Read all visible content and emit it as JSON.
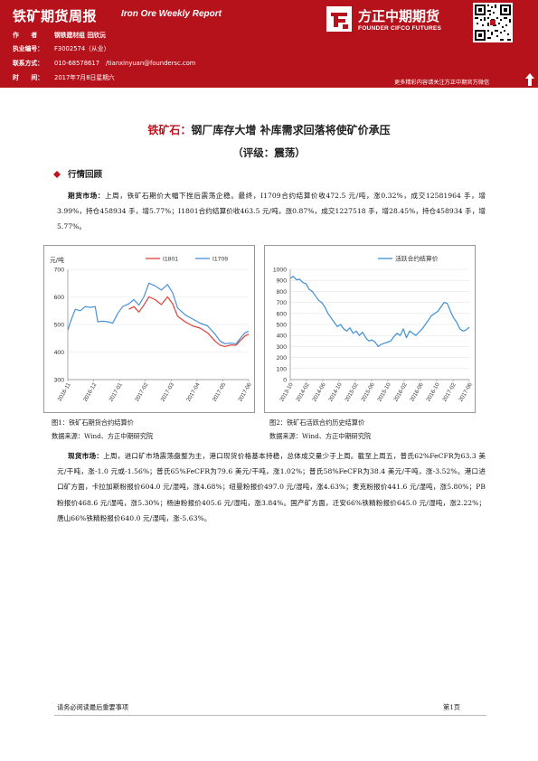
{
  "header": {
    "title": "铁矿期货周报",
    "title_en": "Iron Ore Weekly Report",
    "author_label": "作　　者",
    "author_value": "钢铁建材组 田欣沅",
    "license_label": "执业编号：",
    "license_value": "F3002574（从业）",
    "contact_label": "联系方式：",
    "contact_value": "010-68578617　/tianxinyuan@foundersc.com",
    "time_label": "时　　间：",
    "time_value": "2017年7月8日星期六",
    "logo_cn": "方正中期期货",
    "logo_en": "FOUNDER CIFCO FUTURES",
    "qr_caption": "更多精彩内容请关注方正中期官方微信"
  },
  "title": {
    "accent": "铁矿石：",
    "main": "钢厂库存大增 补库需求回落将使矿价承压",
    "rating": "（评级：震荡）"
  },
  "section": {
    "heading": "行情回顾"
  },
  "futures": {
    "lead": "期货市场：",
    "text": "上周，铁矿石期价大幅下挫后震荡企稳。最终，I1709合约结算价收472.5 元/吨，涨0.32%，成交12581964 手，增3.99%，持仓458934 手，增5.77%；I1801合约结算价收463.5 元/吨，涨0.87%，成交1227518 手，增28.45%，持仓458934 手，增5.77%。"
  },
  "spot": {
    "lead": "现货市场：",
    "text": "上周，进口矿市场震荡盘整为主，港口现货价格基本持稳，总体成交量少于上周。截至上周五，普氏62%FeCFR为63.3 美元/干吨，涨-1.0 元或-1.56%；普氏65%FeCFR为79.6 美元/干吨，涨1.02%；普氏58%FeCFR为38.4 美元/干吨，涨-3.52%。港口进口矿方面，卡拉加斯粉报价604.0 元/湿吨，涨4.68%；纽曼粉报价497.0 元/湿吨，涨4.63%；麦克粉报价441.6 元/湿吨，涨5.80%；PB粉报价468.6 元/湿吨，涨5.30%；杨迪粉报价405.6 元/湿吨，涨3.84%。国产矿方面，迁安66%铁精粉报价645.0 元/湿吨，涨2.22%；唐山66%铁精粉报价640.0 元/湿吨，涨-5.63%。"
  },
  "captions": {
    "fig1": "图1：铁矿石期货合约结算价",
    "fig2": "图2：铁矿石活跃合约历史结算价",
    "source1": "数据来源：Wind、方正中期研究院",
    "source2": "数据来源：Wind、方正中期研究院"
  },
  "footer": {
    "disclaimer": "请务必阅读最后重要事项",
    "page": "第1页"
  },
  "colors": {
    "brand_red": "#b5121b",
    "series_i1801": "#e0413a",
    "series_i1709": "#4a90d9",
    "series_active": "#3d8fd6"
  },
  "chart_data": [
    {
      "type": "line",
      "unit_label": "元/吨",
      "ylim": [
        300,
        700
      ],
      "yticks": [
        300,
        400,
        500,
        600,
        700
      ],
      "ytick_labels": [
        "300",
        "400",
        "500",
        "600",
        "700"
      ],
      "xticks": [
        "2016-11",
        "2016-12",
        "2017-01",
        "2017-02",
        "2017-03",
        "2017-04",
        "2017-05",
        "2017-06"
      ],
      "legend": "top",
      "series": [
        {
          "name": "I1801",
          "values": [
            [
              2.45,
              555
            ],
            [
              2.65,
              565
            ],
            [
              2.85,
              545
            ],
            [
              3.05,
              570
            ],
            [
              3.25,
              600
            ],
            [
              3.5,
              590
            ],
            [
              3.75,
              572
            ],
            [
              4.0,
              600
            ],
            [
              4.2,
              575
            ],
            [
              4.4,
              530
            ],
            [
              4.7,
              510
            ],
            [
              5.0,
              495
            ],
            [
              5.3,
              487
            ],
            [
              5.6,
              470
            ],
            [
              5.9,
              440
            ],
            [
              6.1,
              425
            ],
            [
              6.3,
              420
            ],
            [
              6.5,
              425
            ],
            [
              6.75,
              425
            ],
            [
              6.9,
              440
            ],
            [
              7.1,
              458
            ],
            [
              7.25,
              465
            ]
          ]
        },
        {
          "name": "I1709",
          "values": [
            [
              0,
              480
            ],
            [
              0.15,
              520
            ],
            [
              0.3,
              555
            ],
            [
              0.5,
              550
            ],
            [
              0.7,
              565
            ],
            [
              0.9,
              562
            ],
            [
              1.1,
              565
            ],
            [
              1.2,
              510
            ],
            [
              1.4,
              512
            ],
            [
              1.6,
              510
            ],
            [
              1.8,
              505
            ],
            [
              2.0,
              540
            ],
            [
              2.2,
              565
            ],
            [
              2.45,
              575
            ],
            [
              2.65,
              590
            ],
            [
              2.85,
              570
            ],
            [
              3.05,
              600
            ],
            [
              3.25,
              650
            ],
            [
              3.5,
              640
            ],
            [
              3.75,
              625
            ],
            [
              4.0,
              645
            ],
            [
              4.2,
              615
            ],
            [
              4.4,
              560
            ],
            [
              4.7,
              535
            ],
            [
              5.0,
              520
            ],
            [
              5.3,
              505
            ],
            [
              5.6,
              495
            ],
            [
              5.9,
              465
            ],
            [
              6.1,
              440
            ],
            [
              6.3,
              430
            ],
            [
              6.5,
              432
            ],
            [
              6.75,
              430
            ],
            [
              6.9,
              448
            ],
            [
              7.1,
              470
            ],
            [
              7.25,
              475
            ]
          ]
        }
      ]
    },
    {
      "type": "line",
      "ylim": [
        0,
        1000
      ],
      "yticks": [
        0,
        100,
        200,
        300,
        400,
        500,
        600,
        700,
        800,
        900,
        1000
      ],
      "ytick_labels": [
        "0",
        "100",
        "200",
        "300",
        "400",
        "500",
        "600",
        "700",
        "800",
        "900",
        "1000"
      ],
      "xticks": [
        "2013-10",
        "2014-02",
        "2014-06",
        "2014-10",
        "2015-02",
        "2015-06",
        "2015-10",
        "2016-02",
        "2016-06",
        "2016-10",
        "2017-02",
        "2017-06"
      ],
      "legend": "top",
      "series": [
        {
          "name": "活跃合约结算价",
          "values": [
            [
              0,
              920
            ],
            [
              0.2,
              935
            ],
            [
              0.4,
              905
            ],
            [
              0.6,
              910
            ],
            [
              0.8,
              880
            ],
            [
              1.0,
              870
            ],
            [
              1.2,
              820
            ],
            [
              1.4,
              800
            ],
            [
              1.6,
              760
            ],
            [
              1.8,
              720
            ],
            [
              2.0,
              700
            ],
            [
              2.2,
              660
            ],
            [
              2.4,
              600
            ],
            [
              2.6,
              560
            ],
            [
              2.8,
              520
            ],
            [
              3.0,
              480
            ],
            [
              3.2,
              500
            ],
            [
              3.4,
              460
            ],
            [
              3.6,
              440
            ],
            [
              3.8,
              470
            ],
            [
              4.0,
              420
            ],
            [
              4.2,
              440
            ],
            [
              4.4,
              400
            ],
            [
              4.6,
              430
            ],
            [
              4.8,
              380
            ],
            [
              5.0,
              350
            ],
            [
              5.2,
              360
            ],
            [
              5.4,
              340
            ],
            [
              5.6,
              300
            ],
            [
              5.8,
              320
            ],
            [
              6.0,
              330
            ],
            [
              6.2,
              340
            ],
            [
              6.4,
              350
            ],
            [
              6.6,
              390
            ],
            [
              6.8,
              420
            ],
            [
              7.0,
              400
            ],
            [
              7.2,
              460
            ],
            [
              7.4,
              380
            ],
            [
              7.6,
              440
            ],
            [
              7.8,
              420
            ],
            [
              8.0,
              400
            ],
            [
              8.2,
              430
            ],
            [
              8.4,
              460
            ],
            [
              8.6,
              500
            ],
            [
              8.8,
              540
            ],
            [
              9.0,
              580
            ],
            [
              9.2,
              600
            ],
            [
              9.4,
              620
            ],
            [
              9.6,
              660
            ],
            [
              9.8,
              700
            ],
            [
              10.0,
              690
            ],
            [
              10.2,
              620
            ],
            [
              10.4,
              560
            ],
            [
              10.6,
              520
            ],
            [
              10.8,
              460
            ],
            [
              11.0,
              440
            ],
            [
              11.2,
              450
            ],
            [
              11.4,
              475
            ]
          ]
        }
      ]
    }
  ]
}
